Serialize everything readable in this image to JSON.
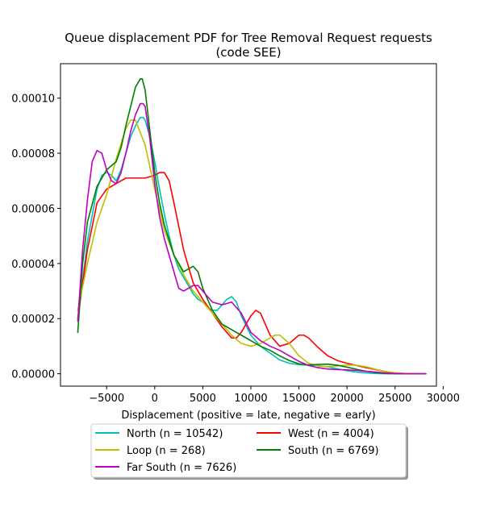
{
  "chart_data": {
    "type": "line",
    "title_line1": "Queue displacement PDF for Tree Removal Request  requests",
    "title_line2": "(code SEE)",
    "xlabel": "Displacement (positive = late, negative = early)",
    "ylabel": "",
    "xlim": [
      -9800,
      29300
    ],
    "ylim": [
      -4.5e-06,
      0.0001125
    ],
    "xticks": [
      -5000,
      0,
      5000,
      10000,
      15000,
      20000,
      25000,
      30000
    ],
    "xtick_labels": [
      "−5000",
      "0",
      "5000",
      "10000",
      "15000",
      "20000",
      "25000",
      "30000"
    ],
    "yticks": [
      0,
      2e-05,
      4e-05,
      6e-05,
      8e-05,
      0.0001
    ],
    "ytick_labels": [
      "0.00000",
      "0.00002",
      "0.00004",
      "0.00006",
      "0.00008",
      "0.00010"
    ],
    "grid": false,
    "legend_placement": "below",
    "series": [
      {
        "name": "North (n = 10542)",
        "color": "#00bfbf",
        "x": [
          -8000,
          -7000,
          -6000,
          -5500,
          -5000,
          -4500,
          -4000,
          -3500,
          -3000,
          -2500,
          -2000,
          -1500,
          -1200,
          -1000,
          -500,
          0,
          500,
          1000,
          1500,
          2000,
          2500,
          3000,
          3500,
          4000,
          4500,
          5000,
          5500,
          6000,
          6500,
          7000,
          7500,
          8000,
          8500,
          9000,
          10000,
          11000,
          12000,
          13000,
          14000,
          15000,
          16000,
          17000,
          18000,
          19000,
          20000,
          21000,
          22000,
          23000,
          24000,
          25000,
          26000,
          27000,
          28000,
          28200
        ],
        "y": [
          2e-05,
          4.8e-05,
          6.7e-05,
          7.2e-05,
          7.3e-05,
          7.2e-05,
          7e-05,
          7.4e-05,
          8e-05,
          8.6e-05,
          9e-05,
          9.3e-05,
          9.3e-05,
          9.2e-05,
          8.6e-05,
          7.7e-05,
          6.7e-05,
          5.8e-05,
          5e-05,
          4.3e-05,
          3.8e-05,
          3.5e-05,
          3.2e-05,
          2.9e-05,
          2.7e-05,
          2.6e-05,
          2.4e-05,
          2.3e-05,
          2.3e-05,
          2.5e-05,
          2.7e-05,
          2.8e-05,
          2.6e-05,
          2.1e-05,
          1.4e-05,
          1e-05,
          7.5e-06,
          5e-06,
          3.8e-06,
          3.3e-06,
          3.1e-06,
          3e-06,
          2.5e-06,
          1.8e-06,
          1.1e-06,
          6e-07,
          3e-07,
          1e-07,
          0,
          0,
          0,
          0,
          0,
          0
        ]
      },
      {
        "name": "West (n = 4004)",
        "color": "#ff0000",
        "x": [
          -8000,
          -7000,
          -6000,
          -5000,
          -4000,
          -3000,
          -2000,
          -1000,
          0,
          500,
          1000,
          1500,
          2000,
          3000,
          4000,
          5000,
          6000,
          7000,
          8000,
          8500,
          9000,
          10000,
          10500,
          11000,
          12000,
          13000,
          14000,
          15000,
          15500,
          16000,
          17000,
          18000,
          19000,
          20000,
          21000,
          22000,
          23000,
          24000,
          25000,
          26000,
          27000,
          28000,
          28200
        ],
        "y": [
          2e-05,
          4.5e-05,
          6.2e-05,
          6.7e-05,
          6.9e-05,
          7.1e-05,
          7.1e-05,
          7.1e-05,
          7.2e-05,
          7.3e-05,
          7.3e-05,
          7e-05,
          6.2e-05,
          4.5e-05,
          3.3e-05,
          2.7e-05,
          2.2e-05,
          1.7e-05,
          1.3e-05,
          1.3e-05,
          1.5e-05,
          2.1e-05,
          2.3e-05,
          2.2e-05,
          1.4e-05,
          1e-05,
          1.1e-05,
          1.4e-05,
          1.4e-05,
          1.3e-05,
          9.5e-06,
          6.5e-06,
          4.8e-06,
          3.8e-06,
          3e-06,
          2.2e-06,
          1.5e-06,
          8e-07,
          3e-07,
          1e-07,
          0,
          0,
          0
        ]
      },
      {
        "name": "Loop (n = 268)",
        "color": "#bfbf00",
        "x": [
          -8000,
          -7000,
          -6000,
          -5000,
          -4000,
          -3000,
          -2500,
          -2000,
          -1000,
          0,
          1000,
          2000,
          3000,
          4000,
          5000,
          6000,
          7000,
          8000,
          9000,
          10000,
          11000,
          12000,
          12500,
          13000,
          14000,
          15000,
          16000,
          17000,
          18000,
          19000,
          20000,
          21000,
          22000,
          23000,
          24000,
          25000,
          26000,
          27000,
          28000,
          28200
        ],
        "y": [
          2.3e-05,
          4e-05,
          5.5e-05,
          6.5e-05,
          7.8e-05,
          8.9e-05,
          9.2e-05,
          9.2e-05,
          8.3e-05,
          6.7e-05,
          5.2e-05,
          4.3e-05,
          3.6e-05,
          3e-05,
          2.6e-05,
          2.2e-05,
          1.8e-05,
          1.4e-05,
          1.1e-05,
          1e-05,
          1.1e-05,
          1.3e-05,
          1.4e-05,
          1.4e-05,
          1.1e-05,
          6.5e-06,
          3.8e-06,
          2.8e-06,
          2.6e-06,
          2.8e-06,
          3.2e-06,
          3.1e-06,
          2.5e-06,
          1.6e-06,
          8e-07,
          3e-07,
          1e-07,
          0,
          0,
          0
        ]
      },
      {
        "name": "South (n = 6769)",
        "color": "#008000",
        "x": [
          -8000,
          -7500,
          -7000,
          -6000,
          -5000,
          -4000,
          -3500,
          -3000,
          -2500,
          -2000,
          -1500,
          -1300,
          -1000,
          -500,
          0,
          500,
          1000,
          2000,
          3000,
          3500,
          4000,
          4500,
          5000,
          6000,
          7000,
          8000,
          9000,
          10000,
          11000,
          12000,
          13000,
          14000,
          15000,
          16000,
          17000,
          18000,
          19000,
          20000,
          21000,
          22000,
          23000,
          24000,
          25000,
          26000,
          27000,
          28000,
          28200
        ],
        "y": [
          1.5e-05,
          4e-05,
          5.5e-05,
          6.8e-05,
          7.4e-05,
          7.7e-05,
          8.2e-05,
          9e-05,
          9.7e-05,
          0.000104,
          0.000107,
          0.000107,
          0.000103,
          8.8e-05,
          7.3e-05,
          6.2e-05,
          5.4e-05,
          4.3e-05,
          3.7e-05,
          3.8e-05,
          3.9e-05,
          3.7e-05,
          3.1e-05,
          2.3e-05,
          1.8e-05,
          1.6e-05,
          1.4e-05,
          1.2e-05,
          1e-05,
          8.5e-06,
          6.5e-06,
          4.8e-06,
          3.6e-06,
          3.2e-06,
          3.4e-06,
          3.5e-06,
          3.1e-06,
          2.4e-06,
          1.6e-06,
          9e-07,
          4e-07,
          1e-07,
          0,
          0,
          0,
          0,
          0
        ]
      },
      {
        "name": "Far South (n = 7626)",
        "color": "#bf00bf",
        "x": [
          -8000,
          -7500,
          -7000,
          -6500,
          -6000,
          -5500,
          -5000,
          -4500,
          -4000,
          -3500,
          -3000,
          -2500,
          -2000,
          -1500,
          -1200,
          -1000,
          -500,
          0,
          500,
          1000,
          2000,
          2500,
          3000,
          3500,
          4000,
          4500,
          5000,
          6000,
          7000,
          8000,
          9000,
          10000,
          11000,
          12000,
          13000,
          14000,
          15000,
          16000,
          17000,
          18000,
          19000,
          20000,
          21000,
          22000,
          23000,
          24000,
          25000,
          26000,
          27000,
          28000,
          28200
        ],
        "y": [
          1.9e-05,
          4.5e-05,
          6.3e-05,
          7.7e-05,
          8.1e-05,
          8e-05,
          7.4e-05,
          7e-05,
          6.9e-05,
          7.3e-05,
          8e-05,
          8.8e-05,
          9.4e-05,
          9.8e-05,
          9.8e-05,
          9.7e-05,
          8.5e-05,
          6.9e-05,
          5.7e-05,
          4.9e-05,
          3.7e-05,
          3.1e-05,
          3e-05,
          3.1e-05,
          3.2e-05,
          3.2e-05,
          3e-05,
          2.6e-05,
          2.5e-05,
          2.6e-05,
          2.2e-05,
          1.5e-05,
          1.2e-05,
          1e-05,
          8.5e-06,
          6.5e-06,
          4.5e-06,
          3e-06,
          2.2e-06,
          1.7e-06,
          1.5e-06,
          1.4e-06,
          1.2e-06,
          9e-07,
          6e-07,
          3e-07,
          1e-07,
          0,
          0,
          0,
          0
        ]
      }
    ]
  }
}
